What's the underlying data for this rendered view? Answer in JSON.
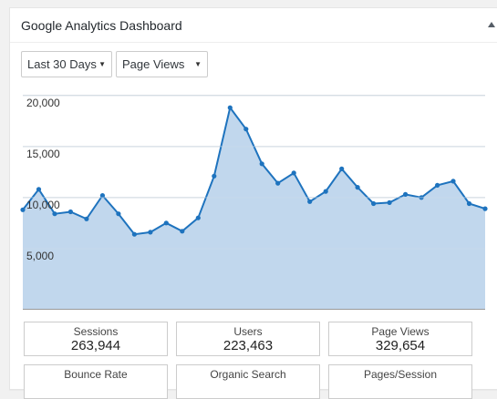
{
  "widget": {
    "title": "Google Analytics Dashboard",
    "collapse_icon": "triangle-up-icon"
  },
  "controls": {
    "range_select": "Last 30 Days",
    "metric_select": "Page Views",
    "caret_glyph": "▼"
  },
  "chart_data": {
    "type": "area",
    "y_ticks": [
      "20,000",
      "15,000",
      "10,000",
      "5,000"
    ],
    "y_tick_values": [
      20000,
      15000,
      10000,
      5000
    ],
    "ylim": [
      0,
      20000
    ],
    "grid": true,
    "series": [
      {
        "values": [
          9700,
          11700,
          9300,
          9500,
          8800,
          11100,
          9300,
          7300,
          7500,
          8400,
          7600,
          8900,
          13000,
          19700,
          17600,
          14200,
          12300,
          13300,
          10500,
          11500,
          13700,
          11900,
          10300,
          10400,
          11200,
          10900,
          12100,
          12500,
          10300,
          9800
        ]
      }
    ],
    "colors": {
      "line": "#1e73be",
      "fill": "#c1d7ed",
      "grid": "#c9d9ea"
    }
  },
  "stats": [
    {
      "label": "Sessions",
      "value": "263,944"
    },
    {
      "label": "Users",
      "value": "223,463"
    },
    {
      "label": "Page Views",
      "value": "329,654"
    }
  ],
  "stats_row2": [
    {
      "label": "Bounce Rate"
    },
    {
      "label": "Organic Search"
    },
    {
      "label": "Pages/Session"
    }
  ]
}
